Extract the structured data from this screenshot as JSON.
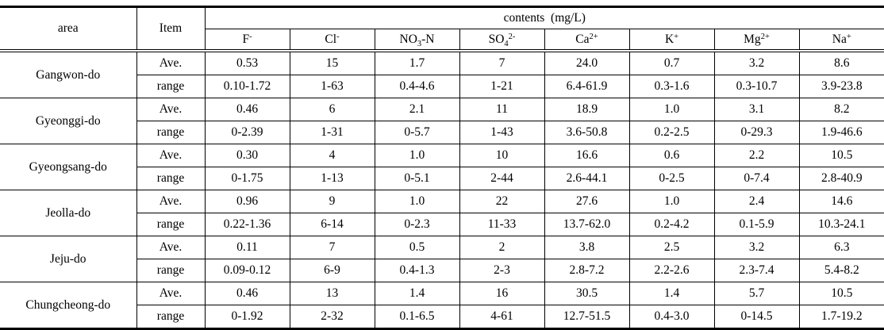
{
  "table": {
    "header": {
      "area_label": "area",
      "item_label": "Item",
      "contents_label": "contents  (mg/L)",
      "ions": [
        {
          "pre": "F",
          "sub": "",
          "sup": "-",
          "post": ""
        },
        {
          "pre": "Cl",
          "sub": "",
          "sup": "-",
          "post": ""
        },
        {
          "pre": "NO",
          "sub": "3",
          "sup": "",
          "post": "-N"
        },
        {
          "pre": "SO",
          "sub": "4",
          "sup": "2-",
          "post": ""
        },
        {
          "pre": "Ca",
          "sub": "",
          "sup": "2+",
          "post": ""
        },
        {
          "pre": "K",
          "sub": "",
          "sup": "+",
          "post": ""
        },
        {
          "pre": "Mg",
          "sub": "",
          "sup": "2+",
          "post": ""
        },
        {
          "pre": "Na",
          "sub": "",
          "sup": "+",
          "post": ""
        }
      ]
    },
    "row_labels": {
      "ave": "Ave.",
      "range": "range"
    },
    "areas": [
      {
        "name": "Gangwon-do",
        "ave": [
          "0.53",
          "15",
          "1.7",
          "7",
          "24.0",
          "0.7",
          "3.2",
          "8.6"
        ],
        "range": [
          "0.10-1.72",
          "1-63",
          "0.4-4.6",
          "1-21",
          "6.4-61.9",
          "0.3-1.6",
          "0.3-10.7",
          "3.9-23.8"
        ]
      },
      {
        "name": "Gyeonggi-do",
        "ave": [
          "0.46",
          "6",
          "2.1",
          "11",
          "18.9",
          "1.0",
          "3.1",
          "8.2"
        ],
        "range": [
          "0-2.39",
          "1-31",
          "0-5.7",
          "1-43",
          "3.6-50.8",
          "0.2-2.5",
          "0-29.3",
          "1.9-46.6"
        ]
      },
      {
        "name": "Gyeongsang-do",
        "ave": [
          "0.30",
          "4",
          "1.0",
          "10",
          "16.6",
          "0.6",
          "2.2",
          "10.5"
        ],
        "range": [
          "0-1.75",
          "1-13",
          "0-5.1",
          "2-44",
          "2.6-44.1",
          "0-2.5",
          "0-7.4",
          "2.8-40.9"
        ]
      },
      {
        "name": "Jeolla-do",
        "ave": [
          "0.96",
          "9",
          "1.0",
          "22",
          "27.6",
          "1.0",
          "2.4",
          "14.6"
        ],
        "range": [
          "0.22-1.36",
          "6-14",
          "0-2.3",
          "11-33",
          "13.7-62.0",
          "0.2-4.2",
          "0.1-5.9",
          "10.3-24.1"
        ]
      },
      {
        "name": "Jeju-do",
        "ave": [
          "0.11",
          "7",
          "0.5",
          "2",
          "3.8",
          "2.5",
          "3.2",
          "6.3"
        ],
        "range": [
          "0.09-0.12",
          "6-9",
          "0.4-1.3",
          "2-3",
          "2.8-7.2",
          "2.2-2.6",
          "2.3-7.4",
          "5.4-8.2"
        ]
      },
      {
        "name": "Chungcheong-do",
        "ave": [
          "0.46",
          "13",
          "1.4",
          "16",
          "30.5",
          "1.4",
          "5.7",
          "10.5"
        ],
        "range": [
          "0-1.92",
          "2-32",
          "0.1-6.5",
          "4-61",
          "12.7-51.5",
          "0.4-3.0",
          "0-14.5",
          "1.7-19.2"
        ]
      }
    ]
  }
}
